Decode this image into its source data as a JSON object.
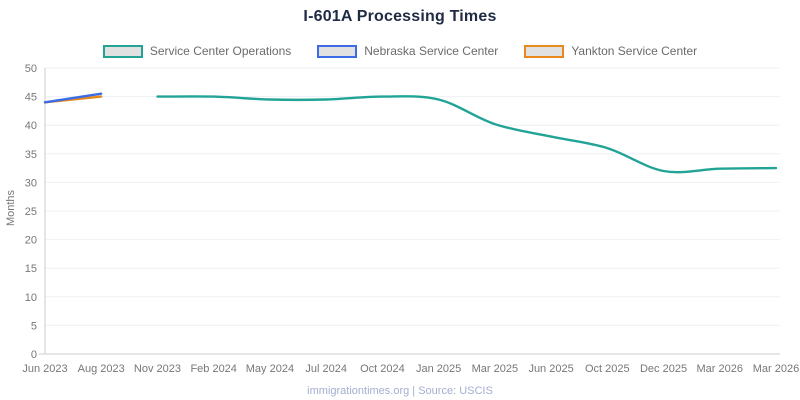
{
  "title": "I-601A Processing Times",
  "footer": "immigrationtimes.org | Source: USCIS",
  "colors": {
    "title_text": "#1f2a44",
    "axis_text": "#75777a",
    "grid_line": "#eef0f6",
    "axis_line": "#cccccc",
    "footer_text": "#a3aed0",
    "legend_text": "#696a6c",
    "legend_swatch_fill": "#e1e1e1"
  },
  "chart_data": {
    "type": "line",
    "title": "I-601A Processing Times",
    "xlabel": "",
    "ylabel": "Months",
    "ylim": [
      0,
      50
    ],
    "yticks": [
      0,
      5,
      10,
      15,
      20,
      25,
      30,
      35,
      40,
      45,
      50
    ],
    "grid": true,
    "legend_position": "top",
    "categories": [
      "Jun 2023",
      "Aug 2023",
      "Nov 2023",
      "Feb 2024",
      "May 2024",
      "Jul 2024",
      "Oct 2024",
      "Jan 2025",
      "Mar 2025",
      "Jun 2025",
      "Oct 2025",
      "Dec 2025",
      "Mar 2026",
      "Mar 2026"
    ],
    "series": [
      {
        "name": "Service Center Operations",
        "color": "#21a496",
        "start_index": 2,
        "values": [
          45,
          45,
          44.5,
          44.5,
          45,
          44.5,
          40.2,
          38,
          36,
          32,
          32.4,
          32.5
        ]
      },
      {
        "name": "Nebraska Service Center",
        "color": "#3b6ce5",
        "start_index": 0,
        "values": [
          44,
          45.5
        ]
      },
      {
        "name": "Yankton Service Center",
        "color": "#e8891d",
        "start_index": 0,
        "values": [
          44,
          45
        ]
      }
    ]
  }
}
